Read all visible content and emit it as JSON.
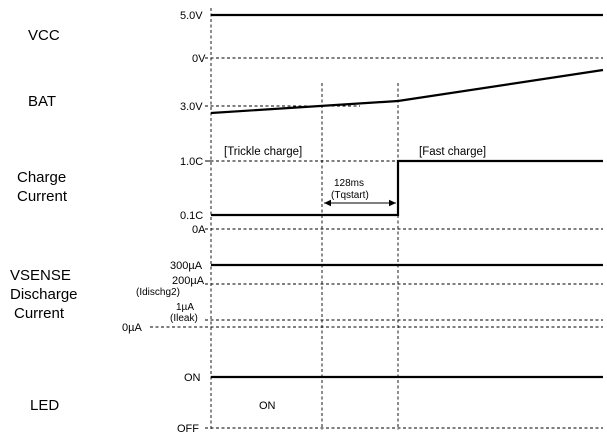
{
  "signals": {
    "vcc": "VCC",
    "bat": "BAT",
    "charge_current": [
      "Charge",
      "Current"
    ],
    "vsense": [
      "VSENSE",
      "Discharge",
      "Current"
    ],
    "led": "LED"
  },
  "levels": {
    "vcc_high": "5.0V",
    "vcc_low": "0V",
    "bat_level": "3.0V",
    "cc_high": "1.0C",
    "cc_low": "0.1C",
    "cc_zero": "0A",
    "vs_high": "300µA",
    "vs_mid": "200µA",
    "vs_mid_name": "(Idischg2)",
    "vs_low": "1µA",
    "vs_low_name": "(Ileak)",
    "vs_zero": "0µA",
    "led_on": "ON",
    "led_off": "OFF"
  },
  "annotations": {
    "trickle": "[Trickle charge]",
    "fast": "[Fast charge]",
    "delay": "128ms",
    "delay_name": "(Tqstart)",
    "led_state": "ON"
  }
}
